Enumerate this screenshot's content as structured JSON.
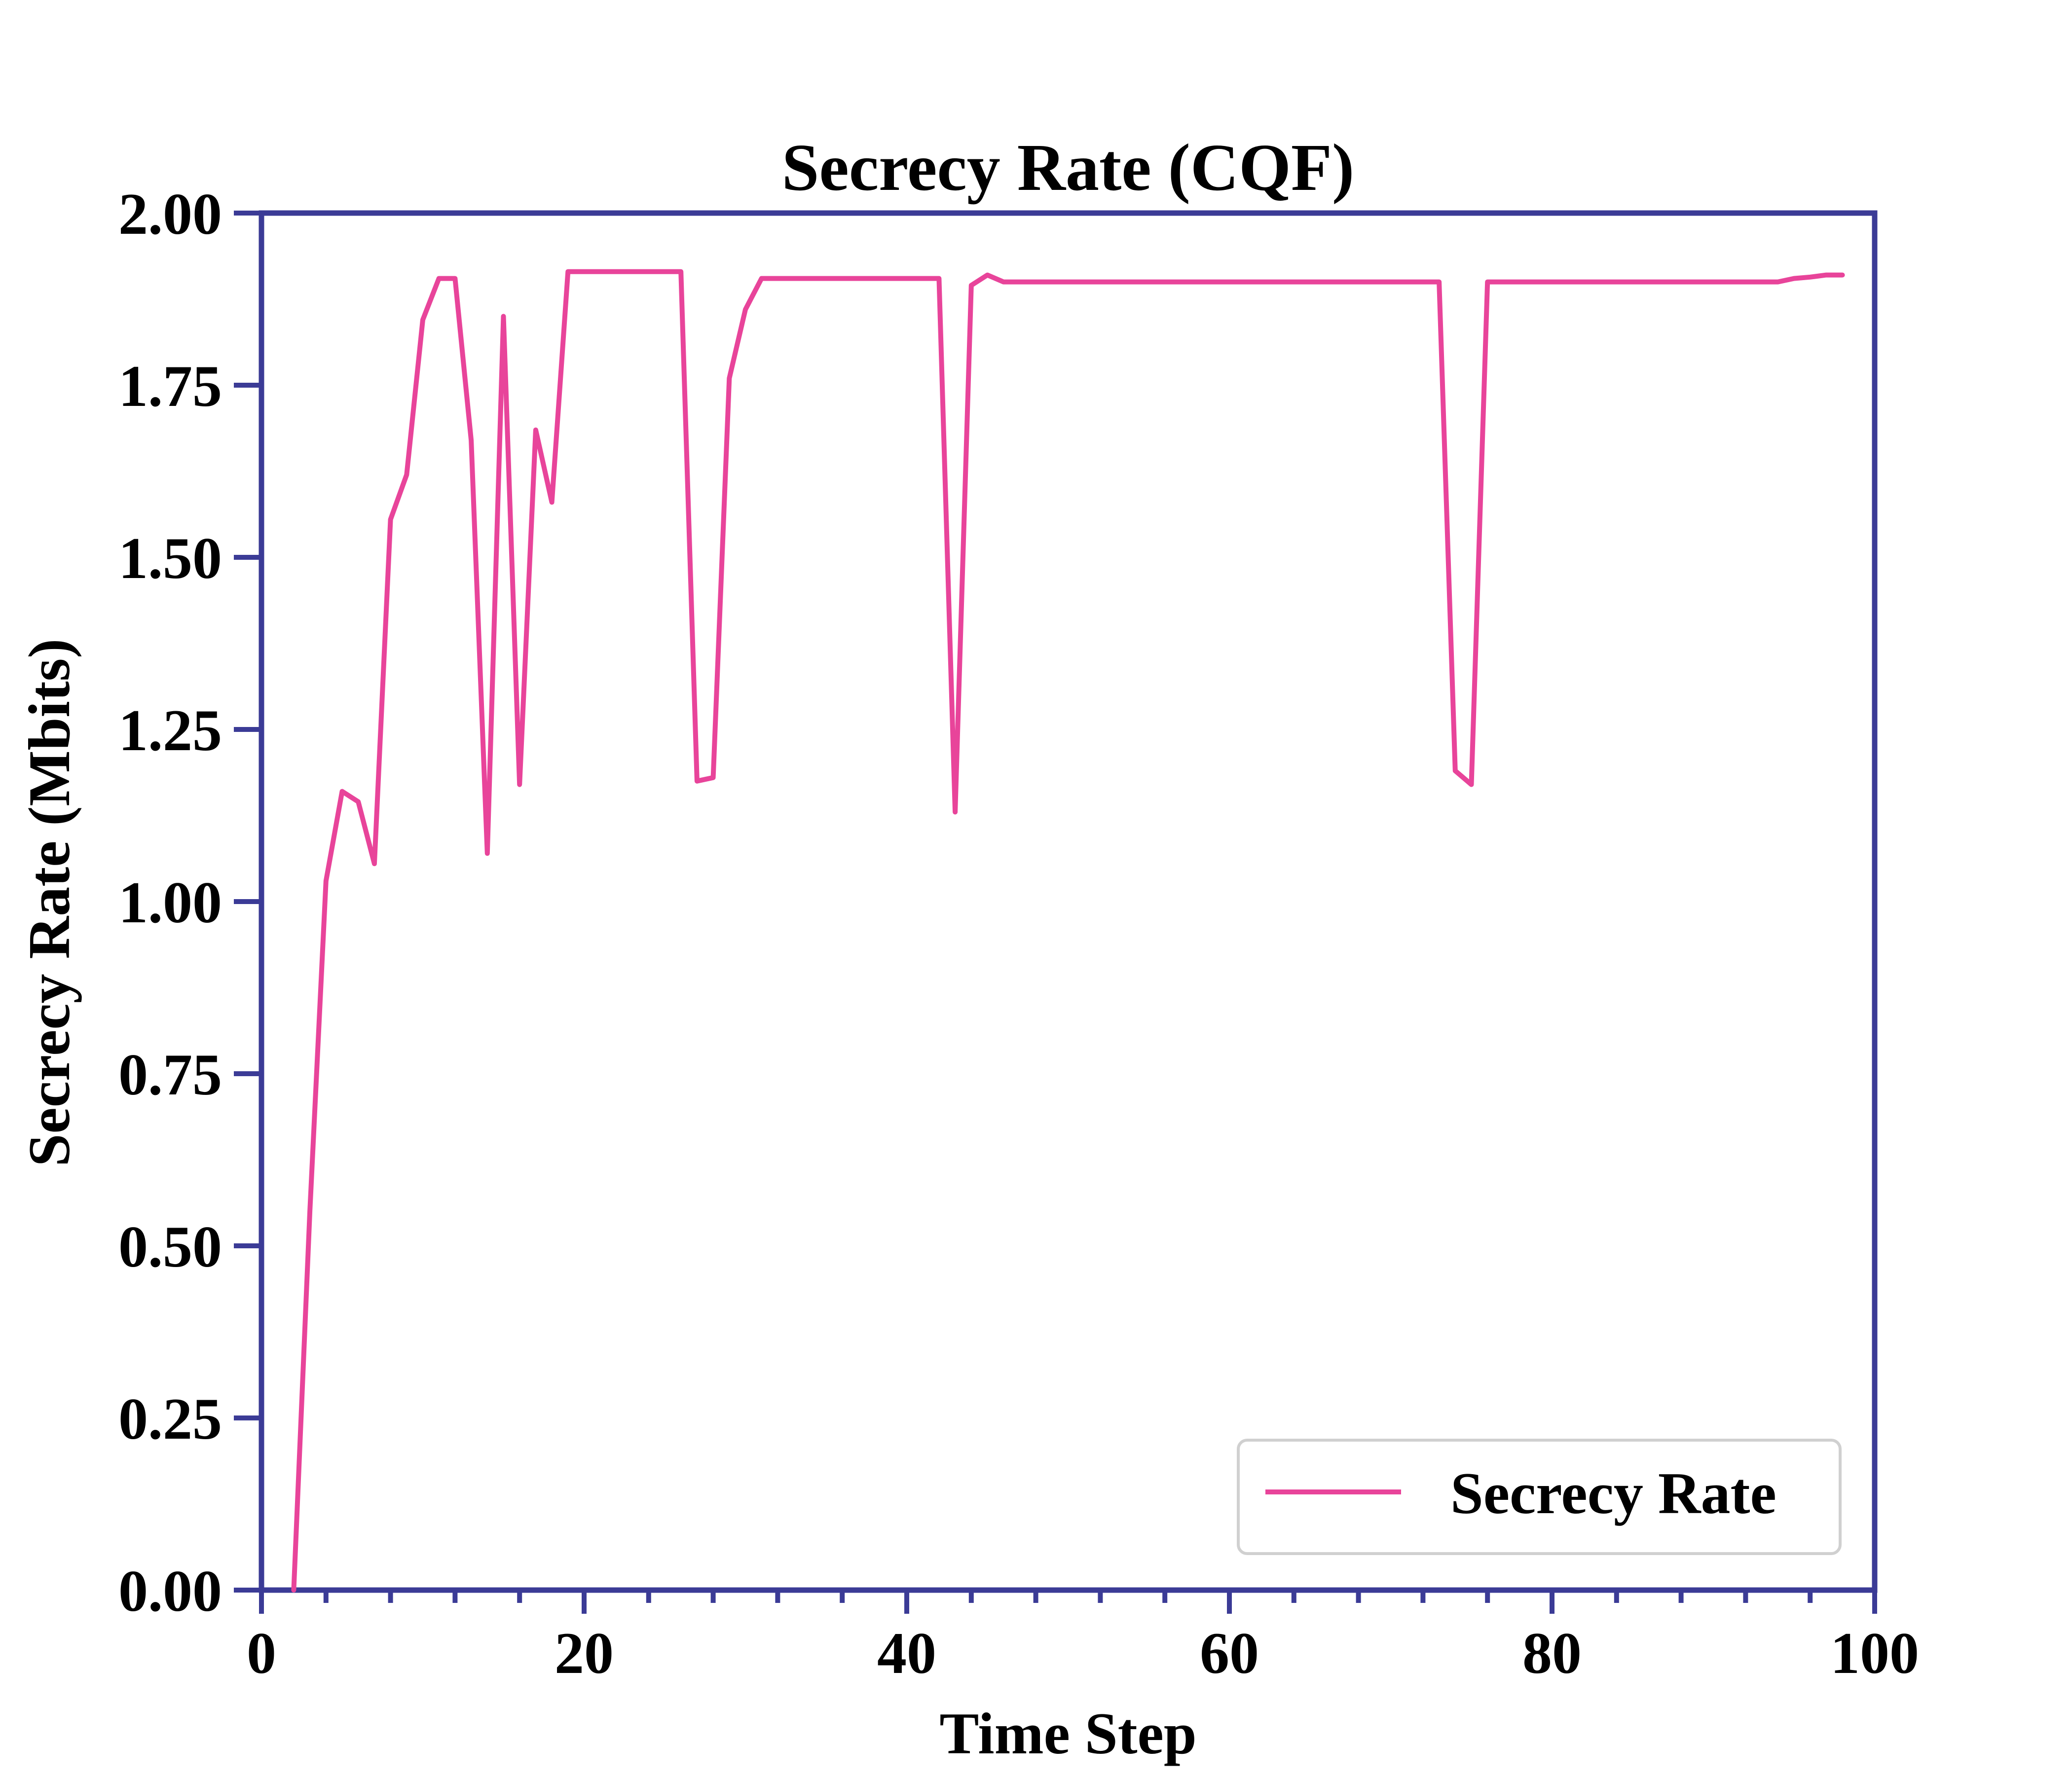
{
  "chart_data": {
    "type": "line",
    "title": "Secrecy Rate (CQF)",
    "xlabel": "Time Step",
    "ylabel": "Secrecy Rate (Mbits)",
    "xlim": [
      0,
      100
    ],
    "ylim": [
      0,
      2.0
    ],
    "xticks": [
      0,
      20,
      40,
      60,
      80,
      100
    ],
    "xtick_labels": [
      "0",
      "20",
      "40",
      "60",
      "80",
      "100"
    ],
    "x_minor_step": 4,
    "yticks": [
      0,
      0.25,
      0.5,
      0.75,
      1.0,
      1.25,
      1.5,
      1.75,
      2.0
    ],
    "ytick_labels": [
      "0.00",
      "0.25",
      "0.50",
      "0.75",
      "1.00",
      "1.25",
      "1.50",
      "1.75",
      "2.00"
    ],
    "grid": false,
    "legend_position": "lower-right",
    "axis_color": "#3b3b96",
    "series": [
      {
        "name": "Secrecy Rate",
        "color": "#e8449a",
        "x": [
          2,
          3,
          4,
          5,
          6,
          7,
          8,
          9,
          10,
          11,
          12,
          13,
          14,
          15,
          16,
          17,
          18,
          19,
          20,
          21,
          22,
          23,
          24,
          25,
          26,
          27,
          28,
          29,
          30,
          31,
          32,
          33,
          34,
          35,
          36,
          37,
          38,
          39,
          40,
          41,
          42,
          43,
          44,
          45,
          46,
          47,
          48,
          49,
          50,
          51,
          52,
          53,
          54,
          55,
          56,
          57,
          58,
          59,
          60,
          61,
          62,
          63,
          64,
          65,
          66,
          67,
          68,
          69,
          70,
          71,
          72,
          73,
          74,
          75,
          76,
          77,
          78,
          79,
          80,
          81,
          82,
          83,
          84,
          85,
          86,
          87,
          88,
          89,
          90,
          91,
          92,
          93,
          94,
          95,
          96,
          97,
          98
        ],
        "y": [
          0.0,
          0.55,
          1.03,
          1.16,
          1.145,
          1.055,
          1.555,
          1.62,
          1.845,
          1.905,
          1.905,
          1.67,
          1.07,
          1.85,
          1.17,
          1.685,
          1.58,
          1.915,
          1.915,
          1.915,
          1.915,
          1.915,
          1.915,
          1.915,
          1.915,
          1.175,
          1.18,
          1.76,
          1.86,
          1.905,
          1.905,
          1.905,
          1.905,
          1.905,
          1.905,
          1.905,
          1.905,
          1.905,
          1.905,
          1.905,
          1.905,
          1.13,
          1.895,
          1.91,
          1.9,
          1.9,
          1.9,
          1.9,
          1.9,
          1.9,
          1.9,
          1.9,
          1.9,
          1.9,
          1.9,
          1.9,
          1.9,
          1.9,
          1.9,
          1.9,
          1.9,
          1.9,
          1.9,
          1.9,
          1.9,
          1.9,
          1.9,
          1.9,
          1.9,
          1.9,
          1.9,
          1.9,
          1.19,
          1.17,
          1.9,
          1.9,
          1.9,
          1.9,
          1.9,
          1.9,
          1.9,
          1.9,
          1.9,
          1.9,
          1.9,
          1.9,
          1.9,
          1.9,
          1.9,
          1.9,
          1.9,
          1.9,
          1.9,
          1.905,
          1.907,
          1.91,
          1.91
        ]
      }
    ]
  }
}
